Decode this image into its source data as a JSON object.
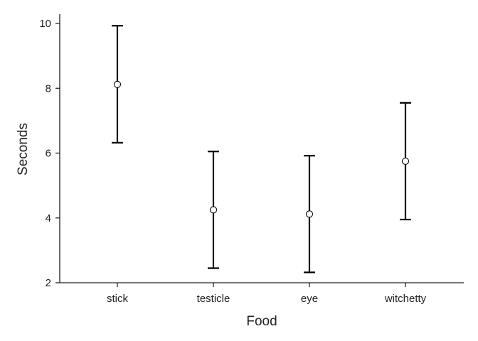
{
  "chart_data": {
    "type": "scatter",
    "title": "",
    "xlabel": "Food",
    "ylabel": "Seconds",
    "categories": [
      "stick",
      "testicle",
      "eye",
      "witchetty"
    ],
    "means": [
      8.12,
      4.25,
      4.12,
      5.75
    ],
    "ci_lower": [
      6.32,
      2.45,
      2.32,
      3.95
    ],
    "ci_upper": [
      9.93,
      6.05,
      5.92,
      7.55
    ],
    "ylim": [
      2,
      10.3
    ],
    "yticks": [
      2,
      4,
      6,
      8,
      10
    ],
    "grid": false,
    "point_fill": "#ffffff",
    "line_color": "#000000",
    "axis_color": "#222222"
  }
}
